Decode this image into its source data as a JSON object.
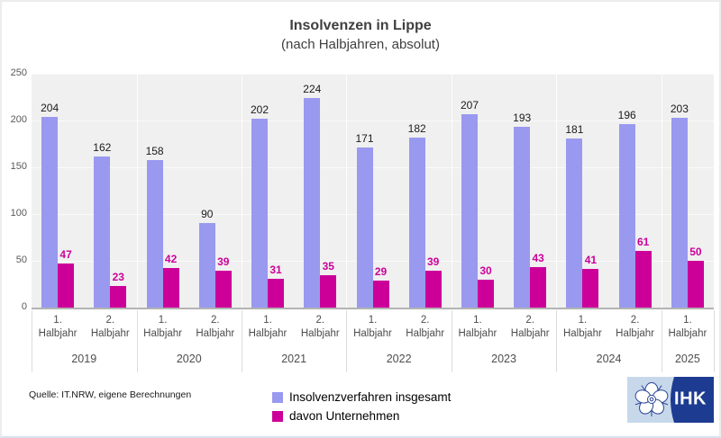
{
  "title": "Insolvenzen in Lippe",
  "subtitle": "(nach Halbjahren, absolut)",
  "source": "Quelle: IT.NRW, eigene Berechnungen",
  "logo": {
    "text": "IHK"
  },
  "colors": {
    "total_bar": "#9999f0",
    "firms_bar": "#cc0099",
    "plot_background": "#f0f0f0",
    "logo_light_blue": "#c7d8eb",
    "logo_dark_blue": "#1d3b91"
  },
  "chart_data": {
    "type": "bar",
    "title": "Insolvenzen in Lippe (nach Halbjahren, absolut)",
    "xlabel": "",
    "ylabel": "",
    "ylim": [
      0,
      250
    ],
    "yticks": [
      0,
      50,
      100,
      150,
      200,
      250
    ],
    "grid": true,
    "legend_position": "bottom",
    "categories": [
      "1. Halbjahr 2019",
      "2. Halbjahr 2019",
      "1. Halbjahr 2020",
      "2. Halbjahr 2020",
      "1. Halbjahr 2021",
      "2. Halbjahr 2021",
      "1. Halbjahr 2022",
      "2. Halbjahr 2022",
      "1. Halbjahr 2023",
      "2. Halbjahr 2023",
      "1. Halbjahr 2024",
      "2. Halbjahr 2024",
      "1. Halbjahr 2025"
    ],
    "years": [
      {
        "year": "2019",
        "halves": [
          "1. Halbjahr",
          "2. Halbjahr"
        ]
      },
      {
        "year": "2020",
        "halves": [
          "1. Halbjahr",
          "2. Halbjahr"
        ]
      },
      {
        "year": "2021",
        "halves": [
          "1. Halbjahr",
          "2. Halbjahr"
        ]
      },
      {
        "year": "2022",
        "halves": [
          "1. Halbjahr",
          "2. Halbjahr"
        ]
      },
      {
        "year": "2023",
        "halves": [
          "1. Halbjahr",
          "2. Halbjahr"
        ]
      },
      {
        "year": "2024",
        "halves": [
          "1. Halbjahr",
          "2. Halbjahr"
        ]
      },
      {
        "year": "2025",
        "halves": [
          "1. Halbjahr"
        ]
      }
    ],
    "series": [
      {
        "name": "Insolvenzverfahren insgesamt",
        "color": "#9999f0",
        "values": [
          204,
          162,
          158,
          90,
          202,
          224,
          171,
          182,
          207,
          193,
          181,
          196,
          203
        ]
      },
      {
        "name": "davon Unternehmen",
        "color": "#cc0099",
        "values": [
          47,
          23,
          42,
          39,
          31,
          35,
          29,
          39,
          30,
          43,
          41,
          61,
          50
        ]
      }
    ]
  }
}
